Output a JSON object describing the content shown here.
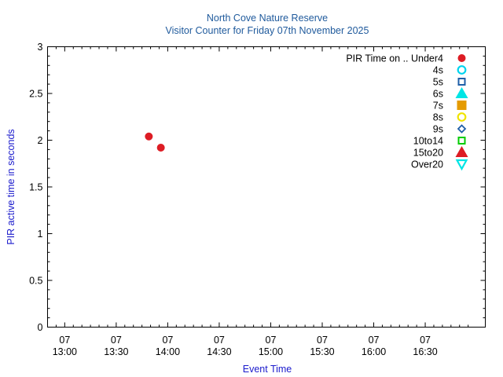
{
  "chart_data": {
    "type": "scatter",
    "title": "North Cove Nature Reserve",
    "subtitle": "Visitor Counter for Friday 07th November 2025",
    "xlabel": "Event Time",
    "ylabel": "PIR active time in seconds",
    "ylim": [
      0,
      3
    ],
    "yticks": [
      "0",
      "0.5",
      "1",
      "1.5",
      "2",
      "2.5",
      "3"
    ],
    "xlim": [
      "12:50",
      "17:05"
    ],
    "xticks": [
      {
        "day": "07",
        "time": "13:00"
      },
      {
        "day": "07",
        "time": "13:30"
      },
      {
        "day": "07",
        "time": "14:00"
      },
      {
        "day": "07",
        "time": "14:30"
      },
      {
        "day": "07",
        "time": "15:00"
      },
      {
        "day": "07",
        "time": "15:30"
      },
      {
        "day": "07",
        "time": "16:00"
      },
      {
        "day": "07",
        "time": "16:30"
      }
    ],
    "grid": false,
    "legend_position": "top-right",
    "series": [
      {
        "name": "PIR Time on .. Under4",
        "marker": "circle-filled",
        "color": "#dd1c24",
        "points": [
          {
            "x": "13:49",
            "y": 2.04
          },
          {
            "x": "13:56",
            "y": 1.92
          }
        ]
      },
      {
        "name": "4s",
        "marker": "circle-open",
        "color": "#00d4ee",
        "points": []
      },
      {
        "name": "5s",
        "marker": "square-open",
        "color": "#1f5fa8",
        "points": []
      },
      {
        "name": "6s",
        "marker": "triangle-up-filled",
        "color": "#00e5e5",
        "points": []
      },
      {
        "name": "7s",
        "marker": "square-filled",
        "color": "#e59b00",
        "points": []
      },
      {
        "name": "8s",
        "marker": "circle-open",
        "color": "#f0e400",
        "points": []
      },
      {
        "name": "9s",
        "marker": "diamond-open",
        "color": "#1f5fa8",
        "points": []
      },
      {
        "name": "10to14",
        "marker": "square-open",
        "color": "#00cc00",
        "points": []
      },
      {
        "name": "15to20",
        "marker": "triangle-up-filled",
        "color": "#dd1c24",
        "points": []
      },
      {
        "name": "Over20",
        "marker": "triangle-down-open",
        "color": "#00e5e5",
        "points": []
      }
    ]
  }
}
